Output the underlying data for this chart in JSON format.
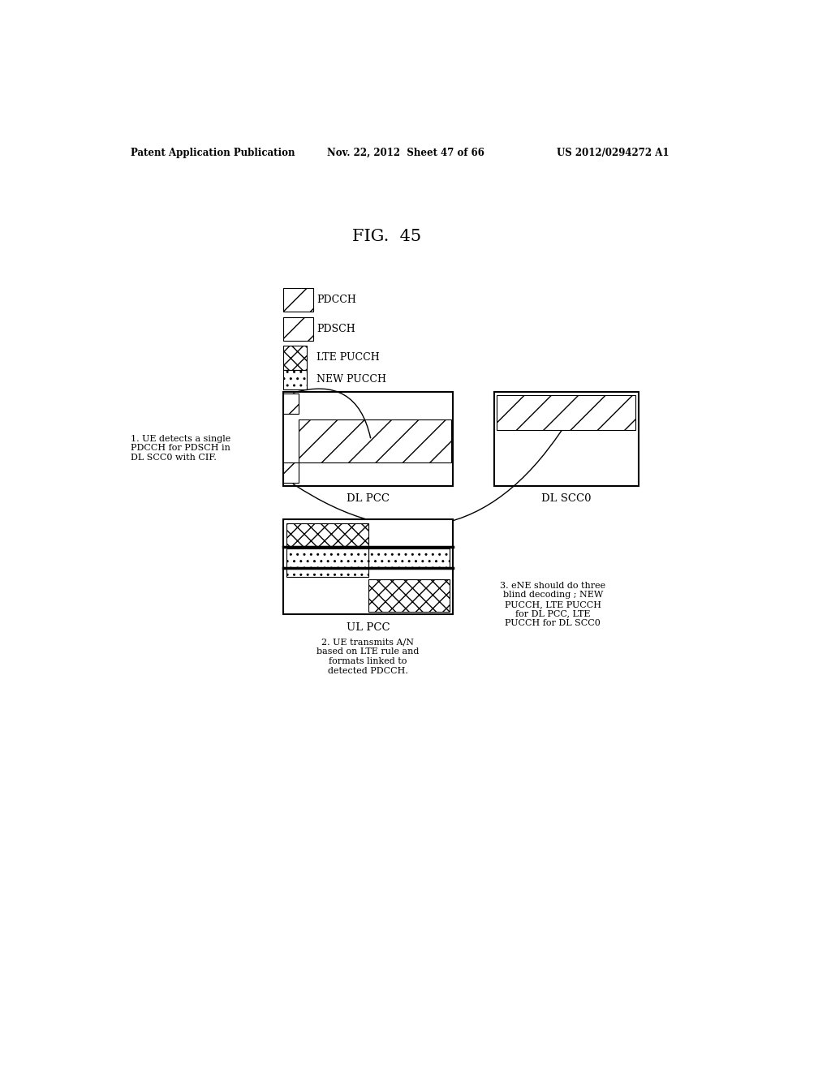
{
  "title": "FIG.  45",
  "header_left": "Patent Application Publication",
  "header_mid": "Nov. 22, 2012  Sheet 47 of 66",
  "header_right": "US 2012/0294272 A1",
  "dl_pcc_label": "DL PCC",
  "dl_scc0_label": "DL SCC0",
  "ul_pcc_label": "UL PCC",
  "note1": "1. UE detects a single\nPDCCH for PDSCH in\nDL SCC0 with CIF.",
  "note2": "2. UE transmits A/N\nbased on LTE rule and\nformats linked to\ndetected PDCCH.",
  "note3": "3. eNE should do three\nblind decoding ; NEW\nPUCCH, LTE PUCCH\nfor DL PCC, LTE\nPUCCH for DL SCC0",
  "bg_color": "#ffffff",
  "text_color": "#000000"
}
